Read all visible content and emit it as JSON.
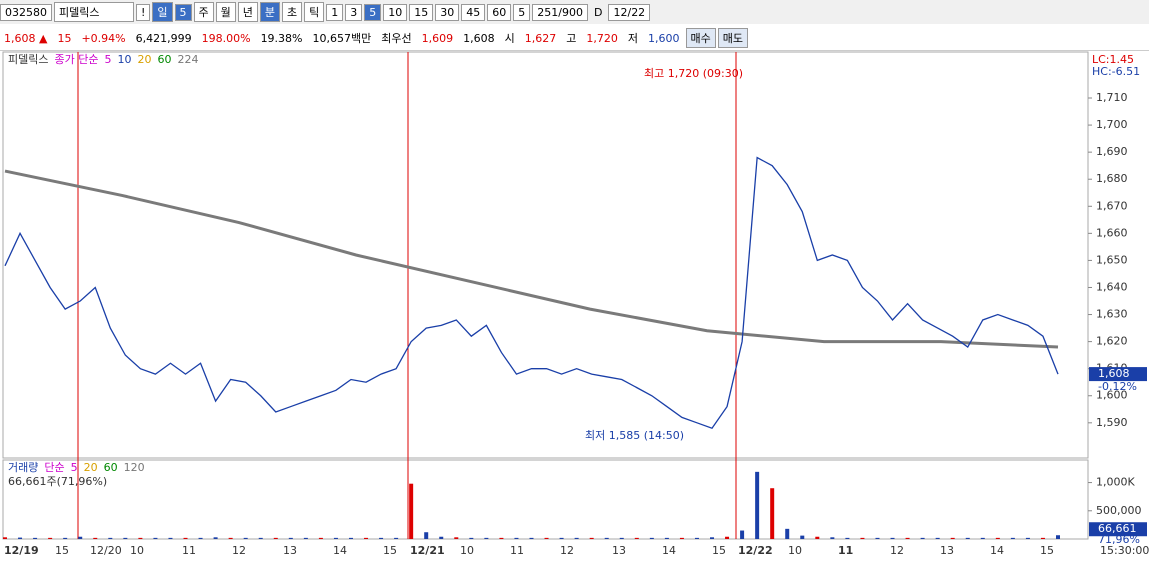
{
  "toolbar": {
    "code": "032580",
    "name": "피델릭스",
    "items": [
      "!",
      "일",
      "5",
      "주",
      "월",
      "년",
      "분",
      "초",
      "틱",
      "1",
      "3",
      "5",
      "10",
      "15",
      "30",
      "45",
      "60",
      "5",
      "251/900"
    ],
    "check": "D",
    "date": "12/22"
  },
  "quote": {
    "price": "1,608 ▲",
    "change": "15",
    "rate": "+0.94%",
    "volume": "6,421,999",
    "ratio": "198.00%",
    "turnover": "19.38%",
    "amount": "10,657백만",
    "best_label": "최우선",
    "ask": "1,609",
    "bid": "1,608",
    "open_label": "시",
    "open": "1,627",
    "high_label": "고",
    "high": "1,720",
    "low_label": "저",
    "low": "1,600",
    "buy": "매수",
    "sell": "매도"
  },
  "chart_data": {
    "type": "line",
    "legend": {
      "name": "피델릭스",
      "ma_label": "종가 단순",
      "periods": [
        "5",
        "10",
        "20",
        "60",
        "224"
      ]
    },
    "price_series": {
      "name": "close",
      "color": "#1a3fa8",
      "values": [
        1648,
        1660,
        1650,
        1640,
        1632,
        1635,
        1640,
        1625,
        1615,
        1610,
        1608,
        1612,
        1608,
        1612,
        1598,
        1606,
        1605,
        1600,
        1594,
        1596,
        1598,
        1600,
        1602,
        1606,
        1605,
        1608,
        1610,
        1620,
        1625,
        1626,
        1628,
        1622,
        1626,
        1616,
        1608,
        1610,
        1610,
        1608,
        1610,
        1608,
        1607,
        1606,
        1603,
        1600,
        1596,
        1592,
        1590,
        1588,
        1596,
        1620,
        1688,
        1685,
        1678,
        1668,
        1650,
        1652,
        1650,
        1640,
        1635,
        1628,
        1634,
        1628,
        1625,
        1622,
        1618,
        1628,
        1630,
        1628,
        1626,
        1622,
        1608
      ]
    },
    "ma224": {
      "name": "224",
      "color": "#7a7a7a",
      "values": [
        1683,
        1674,
        1664,
        1652,
        1642,
        1632,
        1624,
        1620,
        1620,
        1618
      ]
    },
    "ylim": [
      1577,
      1727
    ],
    "yticks": [
      {
        "value": 1590,
        "label": "1,590"
      },
      {
        "value": 1600,
        "label": "1,600"
      },
      {
        "value": 1610,
        "label": "1,610"
      },
      {
        "value": 1620,
        "label": "1,620"
      },
      {
        "value": 1630,
        "label": "1,630"
      },
      {
        "value": 1640,
        "label": "1,640"
      },
      {
        "value": 1650,
        "label": "1,650"
      },
      {
        "value": 1660,
        "label": "1,660"
      },
      {
        "value": 1670,
        "label": "1,670"
      },
      {
        "value": 1680,
        "label": "1,680"
      },
      {
        "value": 1690,
        "label": "1,690"
      },
      {
        "value": 1700,
        "label": "1,700"
      },
      {
        "value": 1710,
        "label": "1,710"
      }
    ],
    "lc": "LC:1.45",
    "hc": "HC:-6.51",
    "last_price": "1,608",
    "last_rate": "-0.12%",
    "annotations": {
      "high": "최고 1,720 (09:30)",
      "low": "최저 1,585 (14:50)"
    },
    "volume": {
      "legend": {
        "name": "거래량",
        "ma_label": "단순",
        "periods": [
          "5",
          "20",
          "60",
          "120"
        ]
      },
      "info": "66,661주(71,96%)",
      "values": [
        30000,
        25000,
        20000,
        20000,
        20000,
        40000,
        20000,
        20000,
        20000,
        20000,
        20000,
        20000,
        20000,
        20000,
        30000,
        20000,
        20000,
        20000,
        20000,
        20000,
        20000,
        20000,
        20000,
        20000,
        20000,
        20000,
        20000,
        980000,
        120000,
        40000,
        30000,
        20000,
        20000,
        20000,
        20000,
        20000,
        20000,
        20000,
        20000,
        20000,
        20000,
        20000,
        20000,
        20000,
        20000,
        20000,
        20000,
        30000,
        40000,
        150000,
        1190000,
        900000,
        180000,
        60000,
        40000,
        30000,
        20000,
        20000,
        20000,
        20000,
        20000,
        20000,
        20000,
        20000,
        20000,
        20000,
        20000,
        20000,
        20000,
        20000,
        66661
      ],
      "ylim": [
        0,
        1400000
      ],
      "yticks": [
        {
          "value": 500000,
          "label": "500,000"
        },
        {
          "value": 1000000,
          "label": "1,000K"
        }
      ],
      "last": "66,661",
      "last_rate": "71,96%"
    },
    "xlabels": [
      "12/19",
      "15",
      "12/20",
      "10",
      "11",
      "12",
      "13",
      "14",
      "15",
      "12/21",
      "10",
      "11",
      "12",
      "13",
      "14",
      "15",
      "12/22",
      "10",
      "11",
      "12",
      "13",
      "14",
      "15"
    ],
    "time": "15:30:00"
  }
}
